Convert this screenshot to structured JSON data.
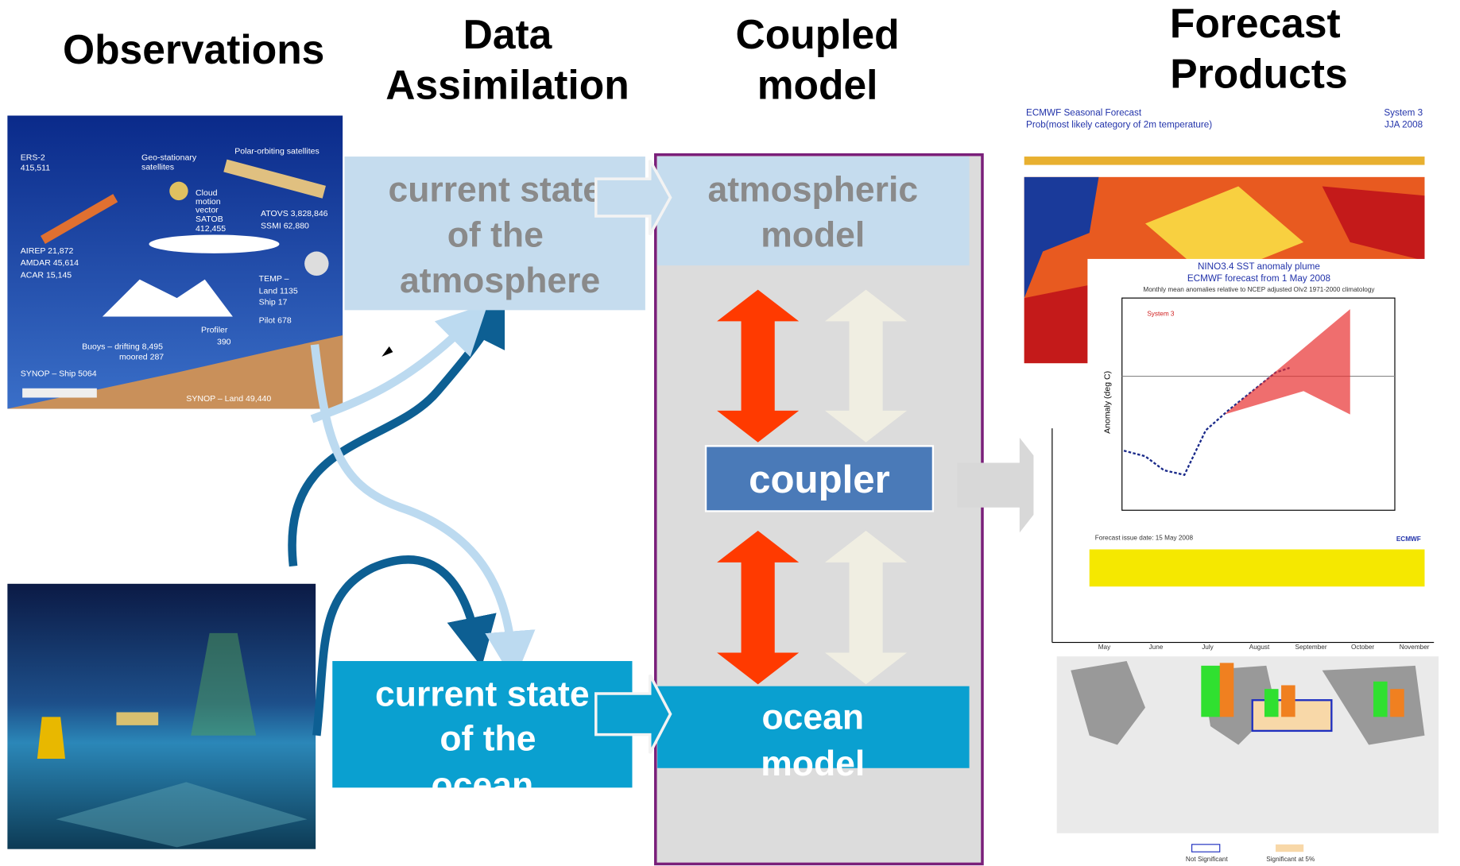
{
  "headers": {
    "observations": "Observations",
    "assimilation": [
      "Data",
      "Assimilation"
    ],
    "coupled": [
      "Coupled",
      "model"
    ],
    "products": [
      "Forecast",
      "Products"
    ]
  },
  "boxes": {
    "atmosphere_state": [
      "current state",
      "of the",
      "atmosphere"
    ],
    "ocean_state": [
      "current state",
      "of the",
      "ocean"
    ],
    "atmospheric_model": [
      "atmospheric",
      "model"
    ],
    "ocean_model": [
      "ocean",
      "model"
    ],
    "coupler": "coupler"
  },
  "observation_labels": [
    "ERS-2",
    "415,511",
    "Geo-stationary",
    "satellites",
    "Polar-orbiting satellites",
    "Cloud",
    "motion",
    "vector",
    "SATOB",
    "412,455",
    "ATOVS  3,828,846",
    "SSMI      62,880",
    "AIREP   21,872",
    "AMDAR  45,614",
    "ACAR    15,145",
    "TEMP –",
    "Land   1135",
    "Ship      17",
    "Pilot     678",
    "Profiler",
    "390",
    "Buoys – drifting  8,495",
    "moored    287",
    "SYNOP – Ship 5064",
    "SYNOP – Land 49,440"
  ],
  "forecast_labels": {
    "map_title": "ECMWF Seasonal Forecast",
    "map_subtitle": "Prob(most likely category of 2m temperature)",
    "map_system": "System 3",
    "map_period": "JJA 2008",
    "plume_title": "NINO3.4 SST anomaly plume",
    "plume_subtitle": "ECMWF forecast from 1 May 2008",
    "plume_note": "Monthly mean anomalies relative to NCEP adjusted OIv2 1971-2000 climatology",
    "plume_legend": "System 3",
    "plume_axis": "Anomaly (deg C)",
    "plume_issue": "Forecast issue date: 15 May 2008",
    "plume_logo": "ECMWF",
    "bar_months": [
      "May",
      "June",
      "July",
      "August",
      "September",
      "October",
      "November"
    ],
    "map_legend": [
      "Not Significant",
      "Significant at 5%"
    ]
  }
}
